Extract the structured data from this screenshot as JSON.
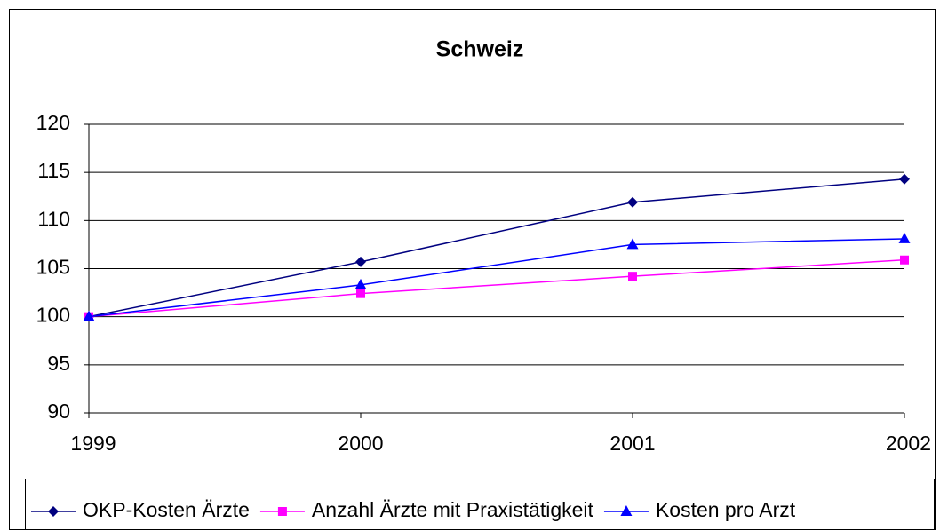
{
  "chart_data": {
    "type": "line",
    "title": "Schweiz",
    "x": [
      1999,
      2000,
      2001,
      2002
    ],
    "xlim": [
      1999,
      2002
    ],
    "xticks": [
      1999,
      2000,
      2001,
      2002
    ],
    "ylim": [
      90,
      120
    ],
    "yticks": [
      90,
      95,
      100,
      105,
      110,
      115,
      120
    ],
    "grid": true,
    "legend": "bottom",
    "series": [
      {
        "name": "OKP-Kosten Ärzte",
        "color": "#000080",
        "marker": "diamond",
        "values": [
          100,
          105.7,
          111.9,
          114.3
        ]
      },
      {
        "name": "Anzahl Ärzte mit Praxistätigkeit",
        "color": "#ff00ff",
        "marker": "square",
        "values": [
          100,
          102.4,
          104.2,
          105.9
        ]
      },
      {
        "name": "Kosten pro Arzt",
        "color": "#0000ff",
        "marker": "triangle",
        "values": [
          100,
          103.3,
          107.5,
          108.1
        ]
      }
    ]
  }
}
